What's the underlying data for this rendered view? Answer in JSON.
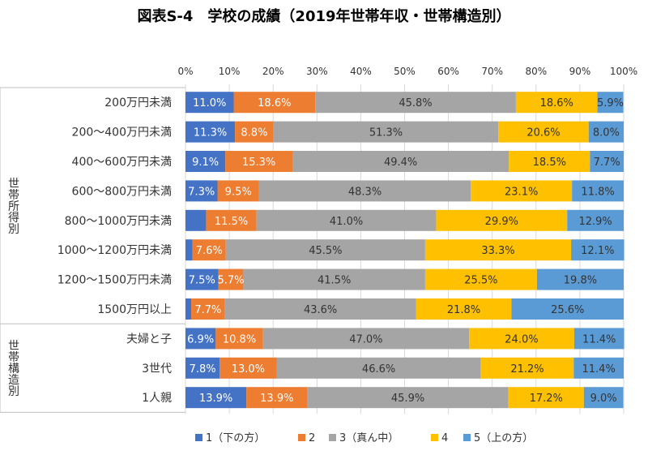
{
  "chart_data": {
    "type": "bar",
    "orientation": "horizontal",
    "stacked": "percent",
    "title": "図表S-4　学校の成績（2019年世帯年収・世帯構造別）",
    "x_ticks": [
      "0%",
      "10%",
      "20%",
      "30%",
      "40%",
      "50%",
      "60%",
      "70%",
      "80%",
      "90%",
      "100%"
    ],
    "xlim": [
      0,
      100
    ],
    "legend_position": "bottom",
    "groups": [
      {
        "label": "世帯所得別",
        "start": 0,
        "end": 8
      },
      {
        "label": "世帯構造別",
        "start": 8,
        "end": 11
      }
    ],
    "categories": [
      "200万円未満",
      "200～400万円未満",
      "400～600万円未満",
      "600～800万円未満",
      "800～1000万円未満",
      "1000～1200万円未満",
      "1200～1500万円未満",
      "1500万円以上",
      "夫婦と子",
      "3世代",
      "1人親"
    ],
    "series": [
      {
        "name": "1（下の方）",
        "color": "#4472C4",
        "label_color": "#ffffff",
        "values": [
          11.0,
          11.3,
          9.1,
          7.3,
          4.7,
          1.6,
          7.5,
          1.3,
          6.9,
          7.8,
          13.9
        ],
        "labels": [
          "11.0%",
          "11.3%",
          "9.1%",
          "7.3%",
          "",
          "",
          "7.5%",
          "",
          "6.9%",
          "7.8%",
          "13.9%"
        ]
      },
      {
        "name": "2",
        "color": "#ED7D31",
        "label_color": "#ffffff",
        "values": [
          18.6,
          8.8,
          15.3,
          9.5,
          11.5,
          7.6,
          5.7,
          7.7,
          10.8,
          13.0,
          13.9
        ],
        "labels": [
          "18.6%",
          "8.8%",
          "15.3%",
          "9.5%",
          "11.5%",
          "7.6%",
          "5.7%",
          "7.7%",
          "10.8%",
          "13.0%",
          "13.9%"
        ]
      },
      {
        "name": "3（真ん中）",
        "color": "#A5A5A5",
        "label_color": "#333333",
        "values": [
          45.8,
          51.3,
          49.4,
          48.3,
          41.0,
          45.5,
          41.5,
          43.6,
          47.0,
          46.6,
          45.9
        ],
        "labels": [
          "45.8%",
          "51.3%",
          "49.4%",
          "48.3%",
          "41.0%",
          "45.5%",
          "41.5%",
          "43.6%",
          "47.0%",
          "46.6%",
          "45.9%"
        ]
      },
      {
        "name": "4",
        "color": "#FFC000",
        "label_color": "#333333",
        "values": [
          18.6,
          20.6,
          18.5,
          23.1,
          29.9,
          33.3,
          25.5,
          21.8,
          24.0,
          21.2,
          17.2
        ],
        "labels": [
          "18.6%",
          "20.6%",
          "18.5%",
          "23.1%",
          "29.9%",
          "33.3%",
          "25.5%",
          "21.8%",
          "24.0%",
          "21.2%",
          "17.2%"
        ]
      },
      {
        "name": "5（上の方）",
        "color": "#5B9BD5",
        "label_color": "#333333",
        "values": [
          5.9,
          8.0,
          7.7,
          11.8,
          12.9,
          12.1,
          19.8,
          25.6,
          11.4,
          11.4,
          9.0
        ],
        "labels": [
          "5.9%",
          "8.0%",
          "7.7%",
          "11.8%",
          "12.9%",
          "12.1%",
          "19.8%",
          "25.6%",
          "11.4%",
          "11.4%",
          "9.0%"
        ]
      }
    ]
  }
}
